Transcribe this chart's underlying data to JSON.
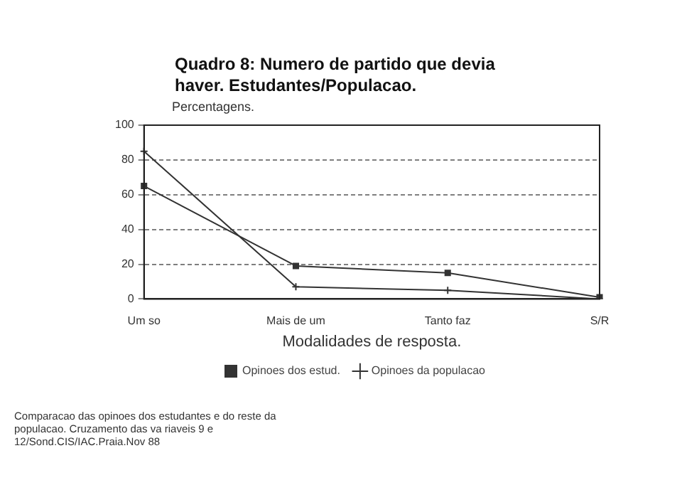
{
  "chart_data": {
    "type": "line",
    "title": "Quadro 8: Numero de partido que devia haver. Estudantes/Populacao.",
    "ylabel": "Percentagens.",
    "xlabel": "Modalidades de resposta.",
    "categories": [
      "Um so",
      "Mais de um",
      "Tanto faz",
      "S/R"
    ],
    "series": [
      {
        "name": "Opinoes dos estud.",
        "color": "#333333",
        "marker": "square",
        "values": [
          65,
          19,
          15,
          1
        ]
      },
      {
        "name": "Opinoes da populacao",
        "color": "#333333",
        "marker": "cross",
        "values": [
          85,
          7,
          5,
          0
        ]
      }
    ],
    "ylim": [
      0,
      100
    ],
    "yticks": [
      0,
      20,
      40,
      60,
      80,
      100
    ],
    "grid": "y",
    "legend": "bottom",
    "annotations": [
      "Comparacao das opinoes dos estudantes e do reste da populacao. Cruzamento das va riaveis 9 e 12/Sond.CIS/IAC.Praia.Nov 88"
    ]
  }
}
